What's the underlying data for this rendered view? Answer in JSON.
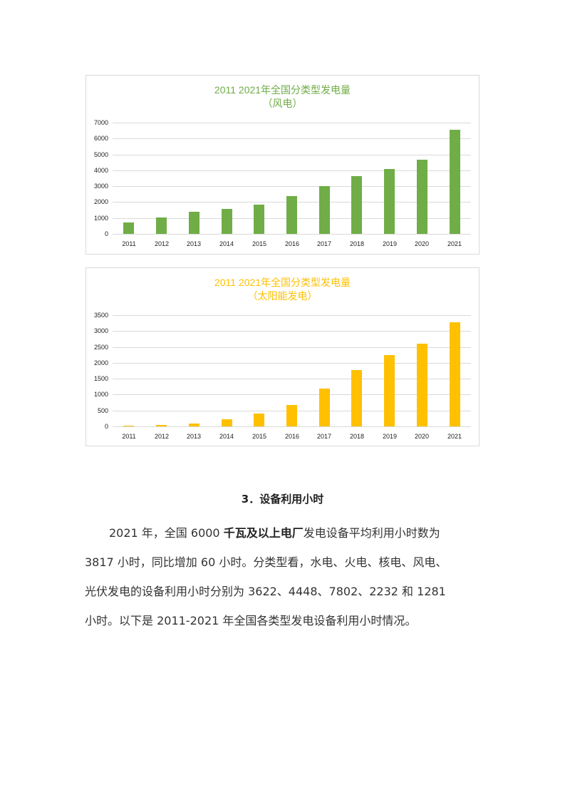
{
  "charts": [
    {
      "title_line1": "2011  2021年全国分类型发电量",
      "title_line2": "（风电）",
      "color": "#70AD47",
      "y_ticks": [
        "7000",
        "6000",
        "5000",
        "4000",
        "3000",
        "2000",
        "1000",
        "0"
      ],
      "x_ticks": [
        "2011",
        "2012",
        "2013",
        "2014",
        "2015",
        "2016",
        "2017",
        "2018",
        "2019",
        "2020",
        "2021"
      ]
    },
    {
      "title_line1": "2011  2021年全国分类型发电量",
      "title_line2": "（太阳能发电）",
      "color": "#FFC000",
      "y_ticks": [
        "3500",
        "3000",
        "2500",
        "2000",
        "1500",
        "1000",
        "500",
        "0"
      ],
      "x_ticks": [
        "2011",
        "2012",
        "2013",
        "2014",
        "2015",
        "2016",
        "2017",
        "2018",
        "2019",
        "2020",
        "2021"
      ]
    }
  ],
  "chart_data": [
    {
      "type": "bar",
      "title": "2011  2021年全国分类型发电量（风电）",
      "categories": [
        "2011",
        "2012",
        "2013",
        "2014",
        "2015",
        "2016",
        "2017",
        "2018",
        "2019",
        "2020",
        "2021"
      ],
      "values": [
        730,
        1040,
        1400,
        1580,
        1850,
        2370,
        2990,
        3620,
        4070,
        4660,
        6540
      ],
      "xlabel": "",
      "ylabel": "",
      "ylim": [
        0,
        7000
      ],
      "yticks": [
        0,
        1000,
        2000,
        3000,
        4000,
        5000,
        6000,
        7000
      ],
      "grid": true,
      "legend": "none",
      "color": "#70AD47"
    },
    {
      "type": "bar",
      "title": "2011  2021年全国分类型发电量（太阳能发电）",
      "categories": [
        "2011",
        "2012",
        "2013",
        "2014",
        "2015",
        "2016",
        "2017",
        "2018",
        "2019",
        "2020",
        "2021"
      ],
      "values": [
        26,
        36,
        84,
        235,
        395,
        665,
        1178,
        1775,
        2240,
        2611,
        3270
      ],
      "xlabel": "",
      "ylabel": "",
      "ylim": [
        0,
        3500
      ],
      "yticks": [
        0,
        500,
        1000,
        1500,
        2000,
        2500,
        3000,
        3500
      ],
      "grid": true,
      "legend": "none",
      "color": "#FFC000"
    }
  ],
  "section": {
    "heading": "3．设备利用小时"
  },
  "paragraph": {
    "l1_a": "2021 年，全国 6000 ",
    "l1_bold": "千瓦及以上电厂",
    "l1_b": "发电设备平均利用小时数为",
    "l2": "3817 小时，同比增加 60 小时。分类型看，水电、火电、核电、风电、",
    "l3": "光伏发电的设备利用小时分别为 3622、4448、7802、2232 和 1281",
    "l4": "小时。以下是 2011-2021 年全国各类型发电设备利用小时情况。"
  }
}
